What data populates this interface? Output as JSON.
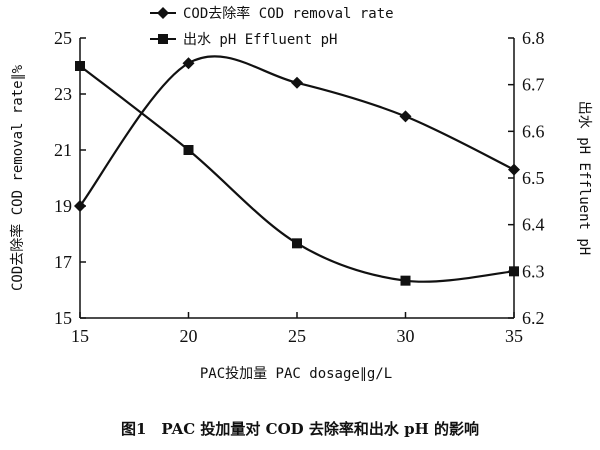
{
  "chart_data": {
    "type": "line",
    "x": [
      15,
      20,
      25,
      30,
      35
    ],
    "xlabel": "PAC投加量 PAC dosage∥g/L",
    "ylabel_left": "COD去除率 COD removal rate∥%",
    "ylabel_right": "出水 pH Effluent pH",
    "xlim": [
      15,
      35
    ],
    "ylim_left": [
      15,
      25
    ],
    "ylim_right": [
      6.2,
      6.8
    ],
    "xticks": [
      15,
      20,
      25,
      30,
      35
    ],
    "yticks_left": [
      15,
      17,
      19,
      21,
      23,
      25
    ],
    "yticks_right": [
      6.2,
      6.3,
      6.4,
      6.5,
      6.6,
      6.7,
      6.8
    ],
    "grid": false,
    "legend_position": "top",
    "series": [
      {
        "name": "COD去除率 COD removal rate",
        "axis": "left",
        "marker": "diamond",
        "smooth": true,
        "values": [
          19.0,
          24.1,
          23.4,
          22.2,
          20.3
        ]
      },
      {
        "name": "出水 pH Effluent pH",
        "axis": "right",
        "marker": "square",
        "smooth": true,
        "values": [
          6.74,
          6.56,
          6.36,
          6.28,
          6.3
        ]
      }
    ],
    "caption": "图1　PAC 投加量对 COD 去除率和出水 pH 的影响"
  }
}
